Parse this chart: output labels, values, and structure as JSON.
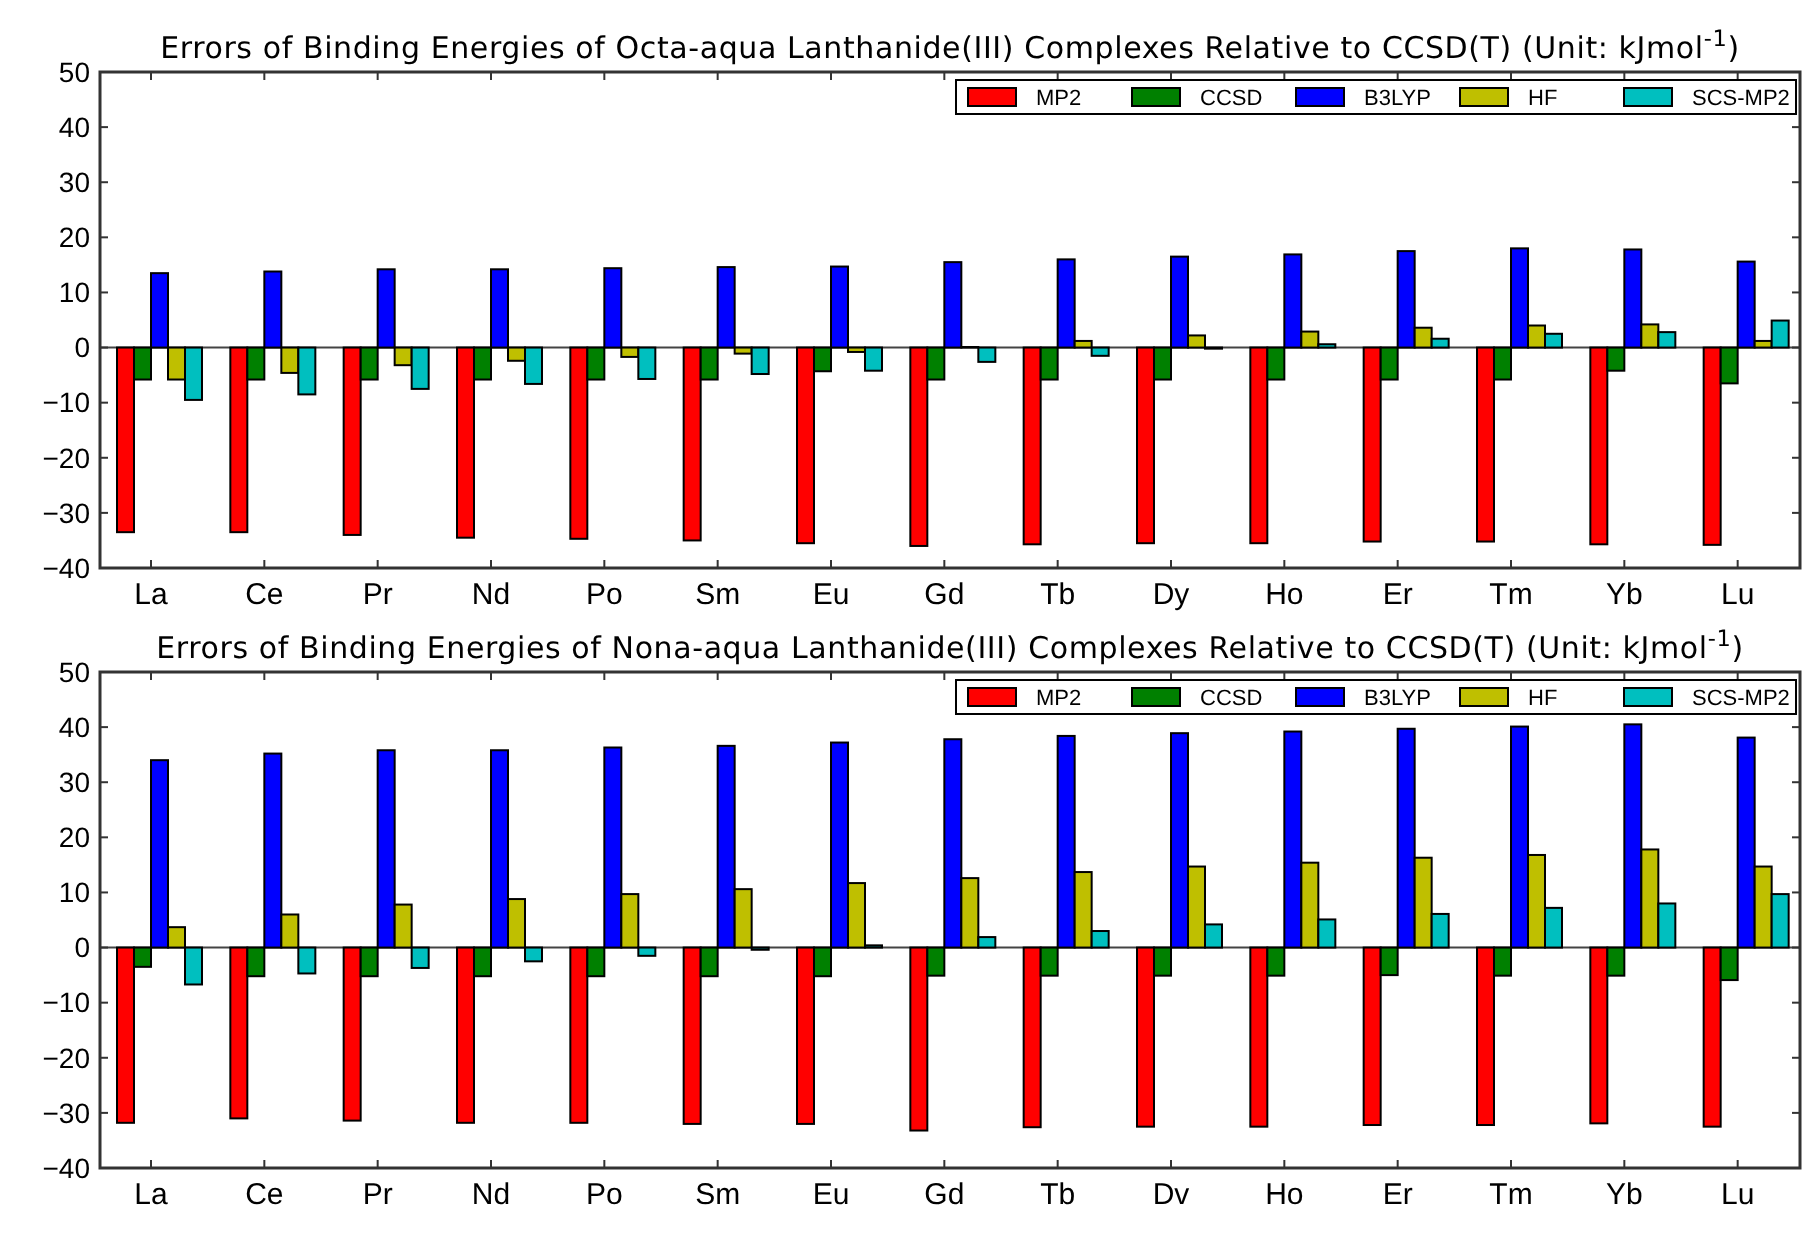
{
  "chart_data": [
    {
      "type": "bar",
      "title": "Errors of Binding Energies of Octa-aqua Lanthanide(III) Complexes Relative to CCSD(T) (Unit: kJmol$^{-1}$)",
      "ref_lines": [
        {
          "axis": "y",
          "value": 0,
          "color": "#444444"
        }
      ],
      "categories": [
        "La",
        "Ce",
        "Pr",
        "Nd",
        "Po",
        "Sm",
        "Eu",
        "Gd",
        "Tb",
        "Dy",
        "Ho",
        "Er",
        "Tm",
        "Yb",
        "Lu"
      ],
      "ylim": [
        -40,
        50
      ],
      "yticks": [
        -40,
        -30,
        -20,
        -10,
        0,
        10,
        20,
        30,
        40,
        50
      ],
      "legend": "top right",
      "grid": false,
      "series": [
        {
          "name": "MP2",
          "color": "#ff0000",
          "values": [
            -33.5,
            -33.5,
            -34,
            -34.5,
            -34.7,
            -35,
            -35.5,
            -36,
            -35.7,
            -35.5,
            -35.5,
            -35.2,
            -35.2,
            -35.7,
            -35.8
          ]
        },
        {
          "name": "CCSD",
          "color": "#008000",
          "values": [
            -5.8,
            -5.8,
            -5.8,
            -5.8,
            -5.8,
            -5.8,
            -4.3,
            -5.8,
            -5.8,
            -5.8,
            -5.8,
            -5.8,
            -5.8,
            -4.2,
            -6.5
          ]
        },
        {
          "name": "B3LYP",
          "color": "#0000ff",
          "values": [
            13.5,
            13.8,
            14.2,
            14.2,
            14.4,
            14.6,
            14.7,
            15.5,
            16,
            16.5,
            16.9,
            17.5,
            18,
            17.8,
            15.6
          ]
        },
        {
          "name": "HF",
          "color": "#bfbf00",
          "values": [
            -5.8,
            -4.6,
            -3.2,
            -2.4,
            -1.7,
            -1.1,
            -0.8,
            0.1,
            1.2,
            2.2,
            2.9,
            3.6,
            4,
            4.2,
            1.2
          ]
        },
        {
          "name": "SCS-MP2",
          "color": "#00bfbf",
          "values": [
            -9.5,
            -8.5,
            -7.5,
            -6.6,
            -5.7,
            -4.8,
            -4.2,
            -2.6,
            -1.5,
            -0.2,
            0.6,
            1.6,
            2.5,
            2.8,
            4.9
          ]
        }
      ]
    },
    {
      "type": "bar",
      "title": "Errors of Binding Energies of Nona-aqua Lanthanide(III) Complexes Relative to CCSD(T) (Unit: kJmol$^{-1}$)",
      "ref_lines": [
        {
          "axis": "y",
          "value": 0,
          "color": "#444444"
        }
      ],
      "categories": [
        "La",
        "Ce",
        "Pr",
        "Nd",
        "Po",
        "Sm",
        "Eu",
        "Gd",
        "Tb",
        "Dv",
        "Ho",
        "Er",
        "Tm",
        "Yb",
        "Lu"
      ],
      "ylim": [
        -40,
        50
      ],
      "yticks": [
        -40,
        -30,
        -20,
        -10,
        0,
        10,
        20,
        30,
        40,
        50
      ],
      "legend": "top right",
      "grid": false,
      "series": [
        {
          "name": "MP2",
          "color": "#ff0000",
          "values": [
            -31.8,
            -31,
            -31.4,
            -31.8,
            -31.8,
            -32,
            -32,
            -33.2,
            -32.6,
            -32.5,
            -32.5,
            -32.2,
            -32.2,
            -31.9,
            -32.5
          ]
        },
        {
          "name": "CCSD",
          "color": "#008000",
          "values": [
            -3.5,
            -5.2,
            -5.2,
            -5.2,
            -5.2,
            -5.2,
            -5.2,
            -5.1,
            -5.1,
            -5.1,
            -5.1,
            -5,
            -5.1,
            -5.1,
            -5.9
          ]
        },
        {
          "name": "B3LYP",
          "color": "#0000ff",
          "values": [
            34,
            35.2,
            35.8,
            35.8,
            36.3,
            36.6,
            37.2,
            37.8,
            38.4,
            38.9,
            39.2,
            39.7,
            40.1,
            40.5,
            38.1
          ]
        },
        {
          "name": "HF",
          "color": "#bfbf00",
          "values": [
            3.7,
            6,
            7.8,
            8.8,
            9.7,
            10.6,
            11.7,
            12.6,
            13.7,
            14.7,
            15.4,
            16.3,
            16.8,
            17.8,
            14.7
          ]
        },
        {
          "name": "SCS-MP2",
          "color": "#00bfbf",
          "values": [
            -6.7,
            -4.7,
            -3.7,
            -2.5,
            -1.5,
            -0.4,
            0.4,
            1.9,
            3,
            4.2,
            5.1,
            6.1,
            7.2,
            8,
            9.7
          ]
        }
      ]
    }
  ]
}
